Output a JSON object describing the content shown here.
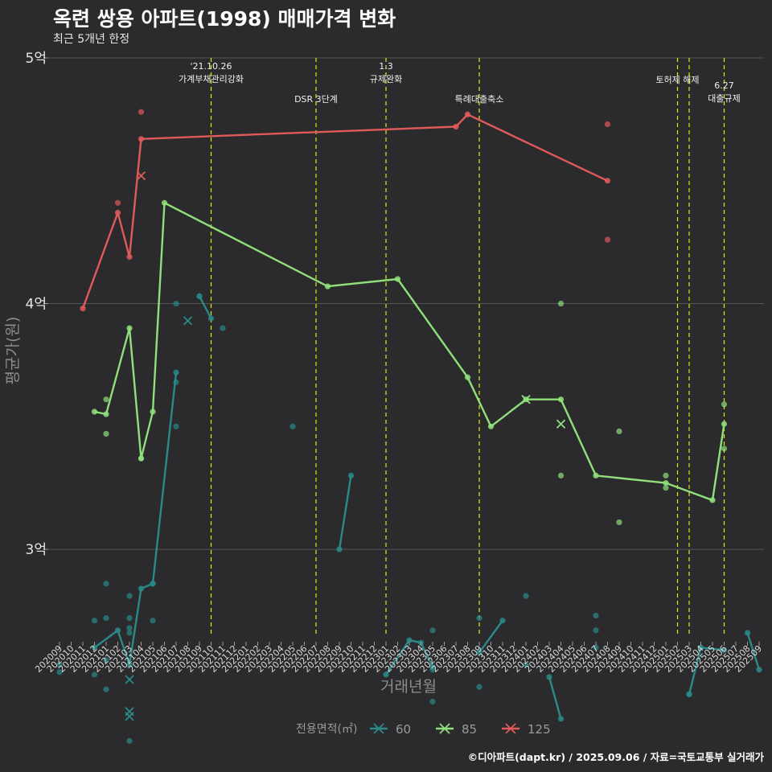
{
  "title": "옥련 쌍용 아파트(1998) 매매가격 변화",
  "subtitle": "최근 5개년 한정",
  "credit": "©디아파트(dapt.kr) / 2025.09.06 / 자료=국토교통부 실거래가",
  "colors": {
    "background": "#2b2b2d",
    "grid": "#555558",
    "event_line": "#e6e61a",
    "s60": "#2a8a8a",
    "s85": "#8fe07a",
    "s125": "#e05a5a"
  },
  "chart_data": {
    "type": "line",
    "title": "옥련 쌍용 아파트(1998) 매매가격 변화",
    "subtitle": "최근 5개년 한정",
    "xlabel": "거래년월",
    "ylabel": "평균가(원)",
    "x_categories": [
      "202009",
      "202010",
      "202011",
      "202012",
      "202101",
      "202102",
      "202103",
      "202104",
      "202105",
      "202106",
      "202107",
      "202108",
      "202109",
      "202110",
      "202111",
      "202112",
      "202201",
      "202202",
      "202203",
      "202204",
      "202205",
      "202206",
      "202207",
      "202208",
      "202209",
      "202210",
      "202211",
      "202212",
      "202301",
      "202302",
      "202303",
      "202304",
      "202305",
      "202306",
      "202307",
      "202308",
      "202309",
      "202310",
      "202311",
      "202312",
      "202401",
      "202402",
      "202403",
      "202404",
      "202405",
      "202406",
      "202407",
      "202408",
      "202409",
      "202410",
      "202411",
      "202412",
      "202501",
      "202502",
      "202503",
      "202504",
      "202505",
      "202506",
      "202507",
      "202508",
      "202509"
    ],
    "y_ticks": [
      {
        "value": 300000000,
        "label": "3억"
      },
      {
        "value": 400000000,
        "label": "4억"
      },
      {
        "value": 500000000,
        "label": "5억"
      }
    ],
    "ylim": [
      265000000,
      500000000
    ],
    "grid": true,
    "legend_title": "전용면적(㎡)",
    "legend_position": "bottom",
    "events": [
      {
        "x": "202110",
        "label": "'21.10.26\n가계부채관리강화",
        "row": 0
      },
      {
        "x": "202207",
        "label": "DSR 3단계",
        "row": 2
      },
      {
        "x": "202301",
        "label": "1.3\n규제완화",
        "row": 0
      },
      {
        "x": "202309",
        "label": "특례대출축소",
        "row": 2
      },
      {
        "x": "202502",
        "label": "토허제 해제",
        "row": 1
      },
      {
        "x": "202503",
        "label": "",
        "row": 1
      },
      {
        "x": "202506",
        "label": "6.27\n대출규제",
        "row": 3
      }
    ],
    "series": [
      {
        "name": "60",
        "color": "#2a8a8a",
        "line": [
          [
            "202012",
            0
          ],
          [
            "202012",
            260000000
          ],
          [
            "202102",
            267000000
          ],
          [
            "202103",
            253000000
          ],
          [
            "202104",
            284000000
          ],
          [
            "202105",
            286000000
          ],
          [
            "202107",
            372000000
          ],
          [
            "202108",
            0
          ],
          [
            "202109",
            403000000
          ],
          [
            "202110",
            394000000
          ],
          [
            "202209",
            0
          ],
          [
            "202209",
            300000000
          ],
          [
            "202210",
            330000000
          ],
          [
            "202301",
            0
          ],
          [
            "202301",
            249000000
          ],
          [
            "202303",
            263000000
          ],
          [
            "202304",
            262000000
          ],
          [
            "202305",
            252000000
          ],
          [
            "202309",
            0
          ],
          [
            "202309",
            258000000
          ],
          [
            "202311",
            271000000
          ],
          [
            "202403",
            0
          ],
          [
            "202403",
            248000000
          ],
          [
            "202404",
            231000000
          ],
          [
            "202503",
            0
          ],
          [
            "202503",
            241000000
          ],
          [
            "202504",
            260000000
          ],
          [
            "202506",
            259000000
          ],
          [
            "202508",
            0
          ],
          [
            "202508",
            266000000
          ],
          [
            "202509",
            251000000
          ]
        ],
        "points": [
          [
            "202009",
            253000000
          ],
          [
            "202009",
            250000000
          ],
          [
            "202012",
            271000000
          ],
          [
            "202012",
            249000000
          ],
          [
            "202101",
            272000000
          ],
          [
            "202101",
            255000000
          ],
          [
            "202101",
            243000000
          ],
          [
            "202101",
            286000000
          ],
          [
            "202103",
            281000000
          ],
          [
            "202103",
            272000000
          ],
          [
            "202103",
            268000000
          ],
          [
            "202103",
            266000000
          ],
          [
            "202103",
            222000000
          ],
          [
            "202105",
            286000000
          ],
          [
            "202105",
            271000000
          ],
          [
            "202107",
            350000000
          ],
          [
            "202107",
            368000000
          ],
          [
            "202107",
            400000000
          ],
          [
            "202109",
            403000000
          ],
          [
            "202111",
            390000000
          ],
          [
            "202205",
            350000000
          ],
          [
            "202305",
            267000000
          ],
          [
            "202305",
            251000000
          ],
          [
            "202305",
            238000000
          ],
          [
            "202309",
            272000000
          ],
          [
            "202309",
            244000000
          ],
          [
            "202401",
            281000000
          ],
          [
            "202401",
            253000000
          ],
          [
            "202407",
            273000000
          ],
          [
            "202407",
            267000000
          ],
          [
            "202407",
            260000000
          ],
          [
            "202503",
            241000000
          ]
        ],
        "cancelled": [
          [
            "202103",
            247000000
          ],
          [
            "202103",
            234000000
          ],
          [
            "202103",
            232000000
          ],
          [
            "202108",
            393000000
          ]
        ]
      },
      {
        "name": "85",
        "color": "#8fe07a",
        "line": [
          [
            "202012",
            356000000
          ],
          [
            "202101",
            355000000
          ],
          [
            "202103",
            390000000
          ],
          [
            "202104",
            337000000
          ],
          [
            "202105",
            356000000
          ],
          [
            "202106",
            441000000
          ],
          [
            "202208",
            407000000
          ],
          [
            "202302",
            410000000
          ],
          [
            "202308",
            370000000
          ],
          [
            "202310",
            350000000
          ],
          [
            "202401",
            361000000
          ],
          [
            "202404",
            361000000
          ],
          [
            "202407",
            330000000
          ],
          [
            "202501",
            327000000
          ],
          [
            "202505",
            320000000
          ],
          [
            "202506",
            351000000
          ]
        ],
        "points": [
          [
            "202101",
            361000000
          ],
          [
            "202101",
            347000000
          ],
          [
            "202104",
            337000000
          ],
          [
            "202404",
            400000000
          ],
          [
            "202404",
            330000000
          ],
          [
            "202409",
            348000000
          ],
          [
            "202409",
            311000000
          ],
          [
            "202501",
            330000000
          ],
          [
            "202501",
            325000000
          ],
          [
            "202506",
            359000000
          ],
          [
            "202506",
            341000000
          ]
        ],
        "cancelled": [
          [
            "202401",
            361000000
          ],
          [
            "202404",
            351000000
          ]
        ]
      },
      {
        "name": "125",
        "color": "#e05a5a",
        "line": [
          [
            "202011",
            398000000
          ],
          [
            "202102",
            437000000
          ],
          [
            "202103",
            419000000
          ],
          [
            "202104",
            467000000
          ],
          [
            "202307",
            472000000
          ],
          [
            "202308",
            477000000
          ],
          [
            "202408",
            450000000
          ]
        ],
        "points": [
          [
            "202102",
            441000000
          ],
          [
            "202104",
            478000000
          ],
          [
            "202408",
            473000000
          ],
          [
            "202408",
            426000000
          ]
        ],
        "cancelled": [
          [
            "202104",
            452000000
          ]
        ]
      }
    ]
  }
}
